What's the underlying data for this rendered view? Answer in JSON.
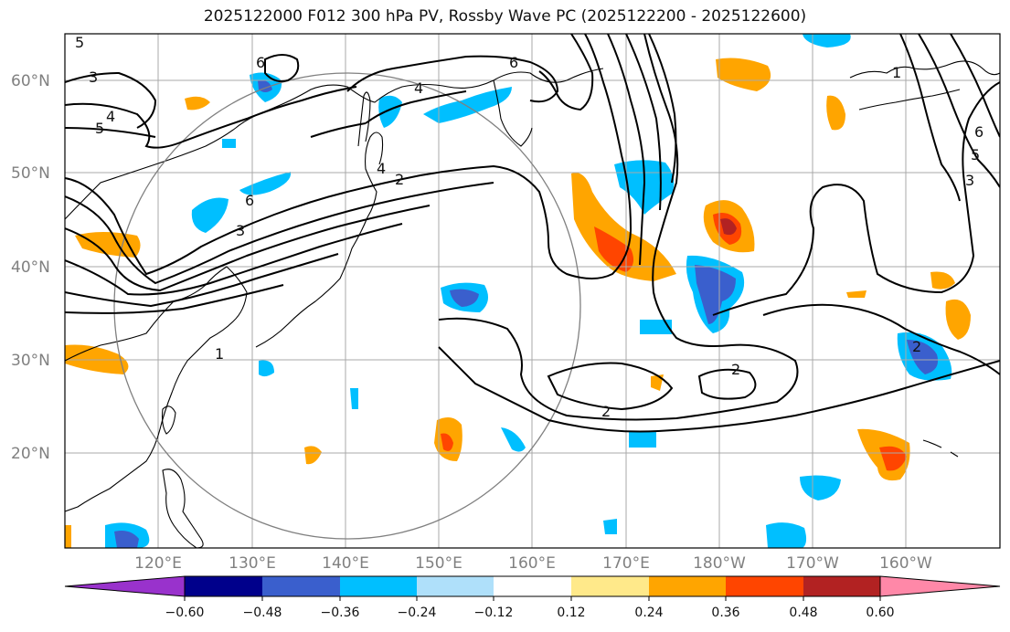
{
  "title": "2025122000 F012 300 hPa PV, Rossby Wave PC (2025122200 - 2025122600)",
  "map": {
    "lat_labels": [
      "60°N",
      "50°N",
      "40°N",
      "30°N",
      "20°N"
    ],
    "lon_labels": [
      "120°E",
      "130°E",
      "140°E",
      "150°E",
      "160°E",
      "170°E",
      "180°W",
      "170°W",
      "160°W"
    ],
    "contour_labels": [
      "5",
      "3",
      "4",
      "5",
      "6",
      "6",
      "4",
      "2",
      "2",
      "2",
      "2",
      "3",
      "6",
      "4",
      "1",
      "6",
      "5",
      "3",
      "1"
    ],
    "colors": {
      "grid": "#a9a9a9",
      "coast": "#000000",
      "contour": "#000000",
      "circle": "#808080"
    }
  },
  "colorbar": {
    "ticks": [
      "−0.60",
      "−0.48",
      "−0.36",
      "−0.24",
      "−0.12",
      "0.12",
      "0.24",
      "0.36",
      "0.48",
      "0.60"
    ],
    "colors": [
      "#9932cc",
      "#00008b",
      "#3a5fcd",
      "#00bfff",
      "#afe0fa",
      "#ffffff",
      "#ffe98a",
      "#ffa500",
      "#ff4500",
      "#b22222",
      "#ff88a8"
    ]
  }
}
